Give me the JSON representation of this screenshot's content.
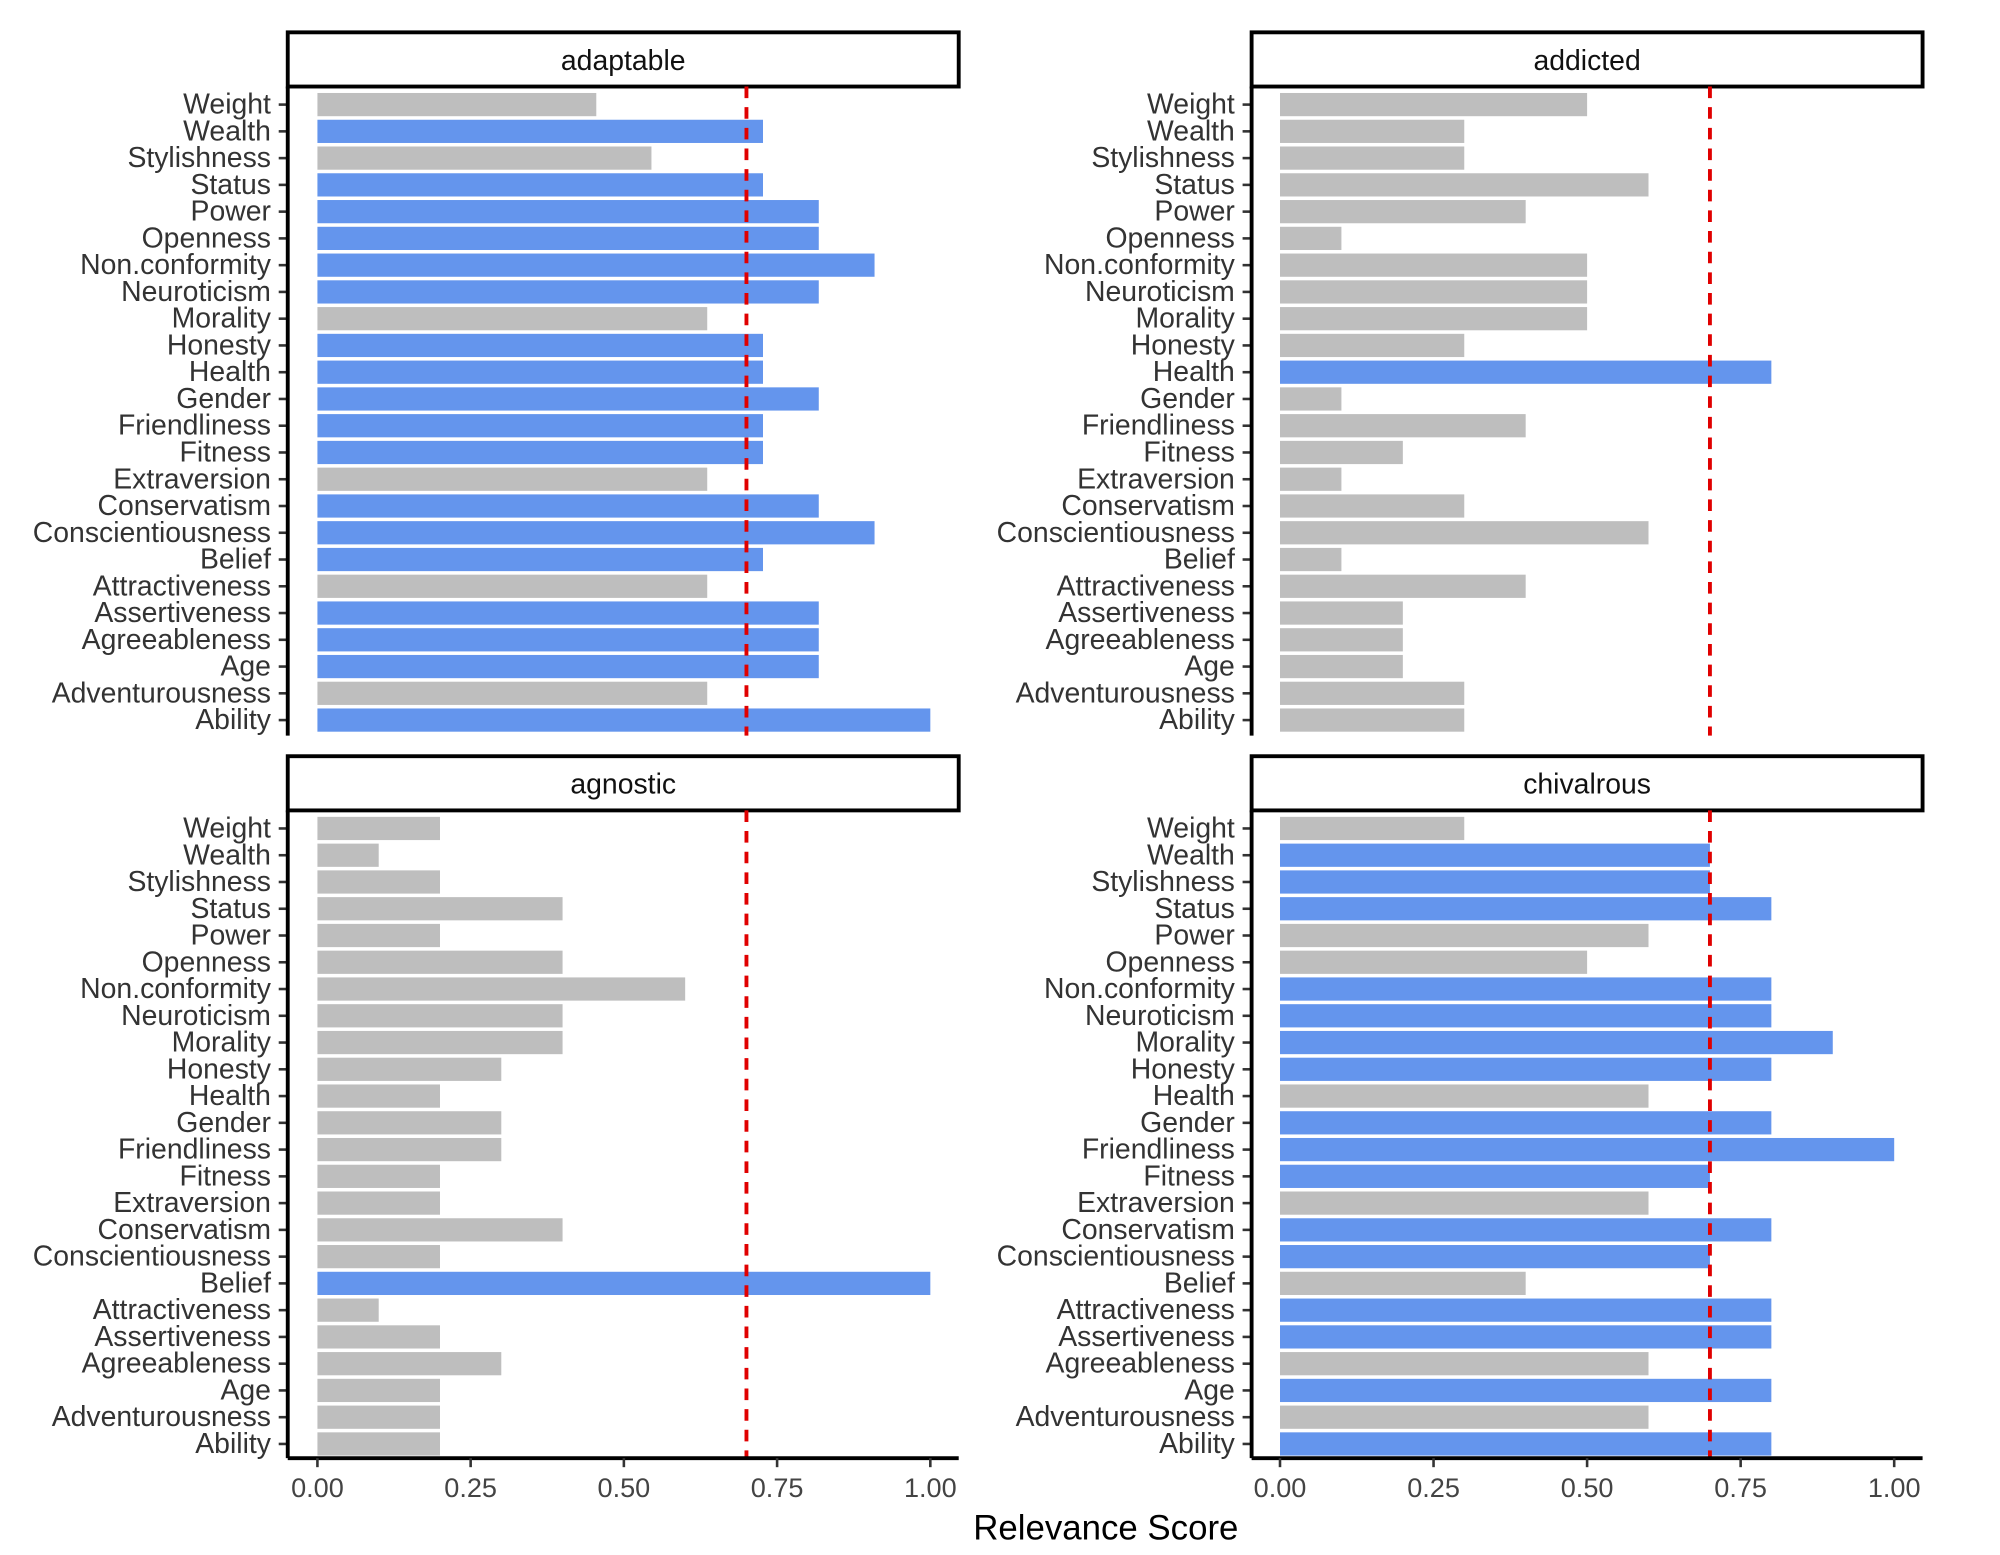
{
  "chart_data": {
    "type": "bar",
    "orientation": "horizontal",
    "xlabel": "Relevance Score",
    "xlim": [
      0,
      1
    ],
    "xticks": [
      "0.00",
      "0.25",
      "0.50",
      "0.75",
      "1.00"
    ],
    "xtick_values": [
      0,
      0.25,
      0.5,
      0.75,
      1.0
    ],
    "threshold": 0.7,
    "colors": {
      "above": "#6495ED",
      "below": "#BEBEBE",
      "threshold": "#E00000"
    },
    "categories": [
      "Weight",
      "Wealth",
      "Stylishness",
      "Status",
      "Power",
      "Openness",
      "Non.conformity",
      "Neuroticism",
      "Morality",
      "Honesty",
      "Health",
      "Gender",
      "Friendliness",
      "Fitness",
      "Extraversion",
      "Conservatism",
      "Conscientiousness",
      "Belief",
      "Attractiveness",
      "Assertiveness",
      "Agreeableness",
      "Age",
      "Adventurousness",
      "Ability"
    ],
    "panels": [
      {
        "title": "adaptable",
        "values": [
          0.455,
          0.727,
          0.545,
          0.727,
          0.818,
          0.818,
          0.909,
          0.818,
          0.636,
          0.727,
          0.727,
          0.818,
          0.727,
          0.727,
          0.636,
          0.818,
          0.909,
          0.727,
          0.636,
          0.818,
          0.818,
          0.818,
          0.636,
          1.0
        ]
      },
      {
        "title": "addicted",
        "values": [
          0.5,
          0.3,
          0.3,
          0.6,
          0.4,
          0.1,
          0.5,
          0.5,
          0.5,
          0.3,
          0.8,
          0.1,
          0.4,
          0.2,
          0.1,
          0.3,
          0.6,
          0.1,
          0.4,
          0.2,
          0.2,
          0.2,
          0.3,
          0.3
        ]
      },
      {
        "title": "agnostic",
        "values": [
          0.2,
          0.1,
          0.2,
          0.4,
          0.2,
          0.4,
          0.6,
          0.4,
          0.4,
          0.3,
          0.2,
          0.3,
          0.3,
          0.2,
          0.2,
          0.4,
          0.2,
          1.0,
          0.1,
          0.2,
          0.3,
          0.2,
          0.2,
          0.2
        ]
      },
      {
        "title": "chivalrous",
        "values": [
          0.3,
          0.7,
          0.7,
          0.8,
          0.6,
          0.5,
          0.8,
          0.8,
          0.9,
          0.8,
          0.6,
          0.8,
          1.0,
          0.7,
          0.6,
          0.8,
          0.7,
          0.4,
          0.8,
          0.8,
          0.6,
          0.8,
          0.6,
          0.8
        ]
      }
    ]
  }
}
